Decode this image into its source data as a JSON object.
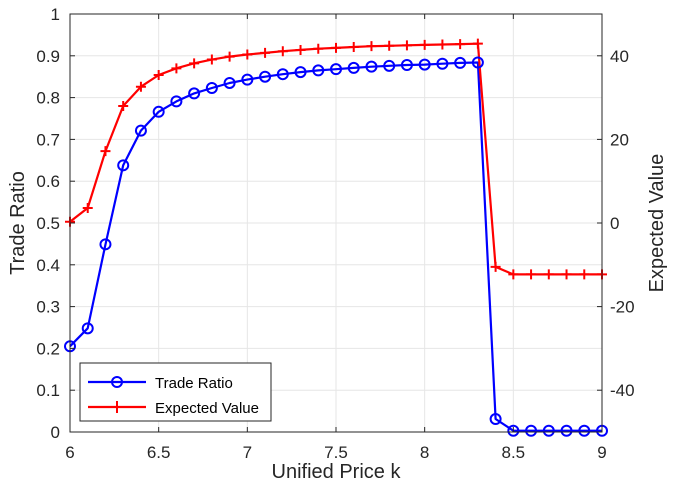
{
  "chart_data": {
    "type": "line",
    "xlabel": "Unified Price k",
    "ylabel_left": "Trade Ratio",
    "ylabel_right": "Expected Value",
    "xlim": [
      6,
      9
    ],
    "ylim_left": [
      0,
      1
    ],
    "ylim_right": [
      -50,
      50
    ],
    "x_ticks": [
      "6",
      "6.5",
      "7",
      "7.5",
      "8",
      "8.5",
      "9"
    ],
    "y_ticks_left": [
      "0",
      "0.1",
      "0.2",
      "0.3",
      "0.4",
      "0.5",
      "0.6",
      "0.7",
      "0.8",
      "0.9",
      "1"
    ],
    "y_ticks_right": [
      "-40",
      "-20",
      "0",
      "20",
      "40"
    ],
    "grid": true,
    "legend_position": "bottom-left",
    "x": [
      6.0,
      6.1,
      6.2,
      6.3,
      6.4,
      6.5,
      6.6,
      6.7,
      6.8,
      6.9,
      7.0,
      7.1,
      7.2,
      7.3,
      7.4,
      7.5,
      7.6,
      7.7,
      7.8,
      7.9,
      8.0,
      8.1,
      8.2,
      8.3,
      8.4,
      8.5,
      8.6,
      8.7,
      8.8,
      8.9,
      9.0
    ],
    "series": [
      {
        "name": "Trade Ratio",
        "axis": "left",
        "color": "#0000ff",
        "marker": "circle",
        "values": [
          0.205,
          0.248,
          0.449,
          0.638,
          0.721,
          0.766,
          0.791,
          0.81,
          0.823,
          0.835,
          0.843,
          0.85,
          0.856,
          0.861,
          0.865,
          0.868,
          0.871,
          0.874,
          0.876,
          0.878,
          0.879,
          0.881,
          0.883,
          0.884,
          0.031,
          0.003,
          0.003,
          0.003,
          0.003,
          0.003,
          0.003
        ]
      },
      {
        "name": "Expected Value",
        "axis": "right",
        "color": "#ff0000",
        "marker": "plus",
        "values": [
          0.3,
          3.6,
          17.2,
          28.0,
          32.6,
          35.4,
          37.0,
          38.2,
          39.1,
          39.8,
          40.3,
          40.7,
          41.1,
          41.4,
          41.7,
          41.9,
          42.1,
          42.3,
          42.4,
          42.5,
          42.6,
          42.7,
          42.8,
          42.9,
          -10.5,
          -12.3,
          -12.3,
          -12.3,
          -12.3,
          -12.3,
          -12.3
        ]
      }
    ]
  }
}
